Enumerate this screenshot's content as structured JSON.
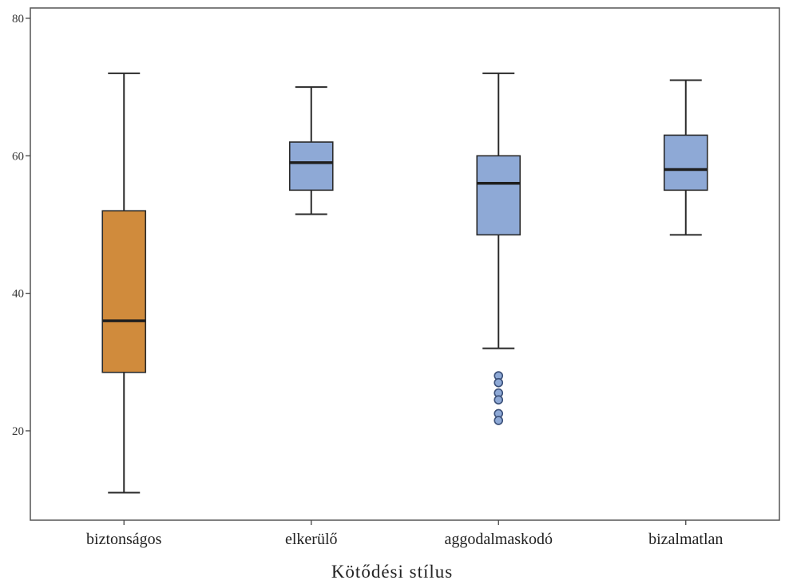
{
  "chart_data": {
    "type": "boxplot",
    "title": "",
    "xlabel": "Kötődési stílus",
    "ylabel": "",
    "ylim": [
      7,
      81.5
    ],
    "yticks": [
      20,
      40,
      60,
      80
    ],
    "ytick_labels": [
      "20",
      "40",
      "60",
      "80"
    ],
    "grid": false,
    "categories": [
      "biztonságos",
      "elkerülő",
      "aggodalmaskodó",
      "bizalmatlan"
    ],
    "boxes": [
      {
        "category": "biztonságos",
        "whisker_low": 11,
        "q1": 28.5,
        "median": 36,
        "q3": 52,
        "whisker_high": 72,
        "outliers": [],
        "color": "#d08b3c"
      },
      {
        "category": "elkerülő",
        "whisker_low": 51.5,
        "q1": 55,
        "median": 59,
        "q3": 62,
        "whisker_high": 70,
        "outliers": [],
        "color": "#8ea9d6"
      },
      {
        "category": "aggodalmaskodó",
        "whisker_low": 32,
        "q1": 48.5,
        "median": 56,
        "q3": 60,
        "whisker_high": 72,
        "outliers": [
          28,
          27,
          25.5,
          24.5,
          22.5,
          21.5
        ],
        "color": "#8ea9d6"
      },
      {
        "category": "bizalmatlan",
        "whisker_low": 48.5,
        "q1": 55,
        "median": 58,
        "q3": 63,
        "whisker_high": 71,
        "outliers": [],
        "color": "#8ea9d6"
      }
    ],
    "colors": {
      "highlight": "#d08b3c",
      "default": "#8ea9d6",
      "stroke": "#2a2a2a"
    }
  }
}
